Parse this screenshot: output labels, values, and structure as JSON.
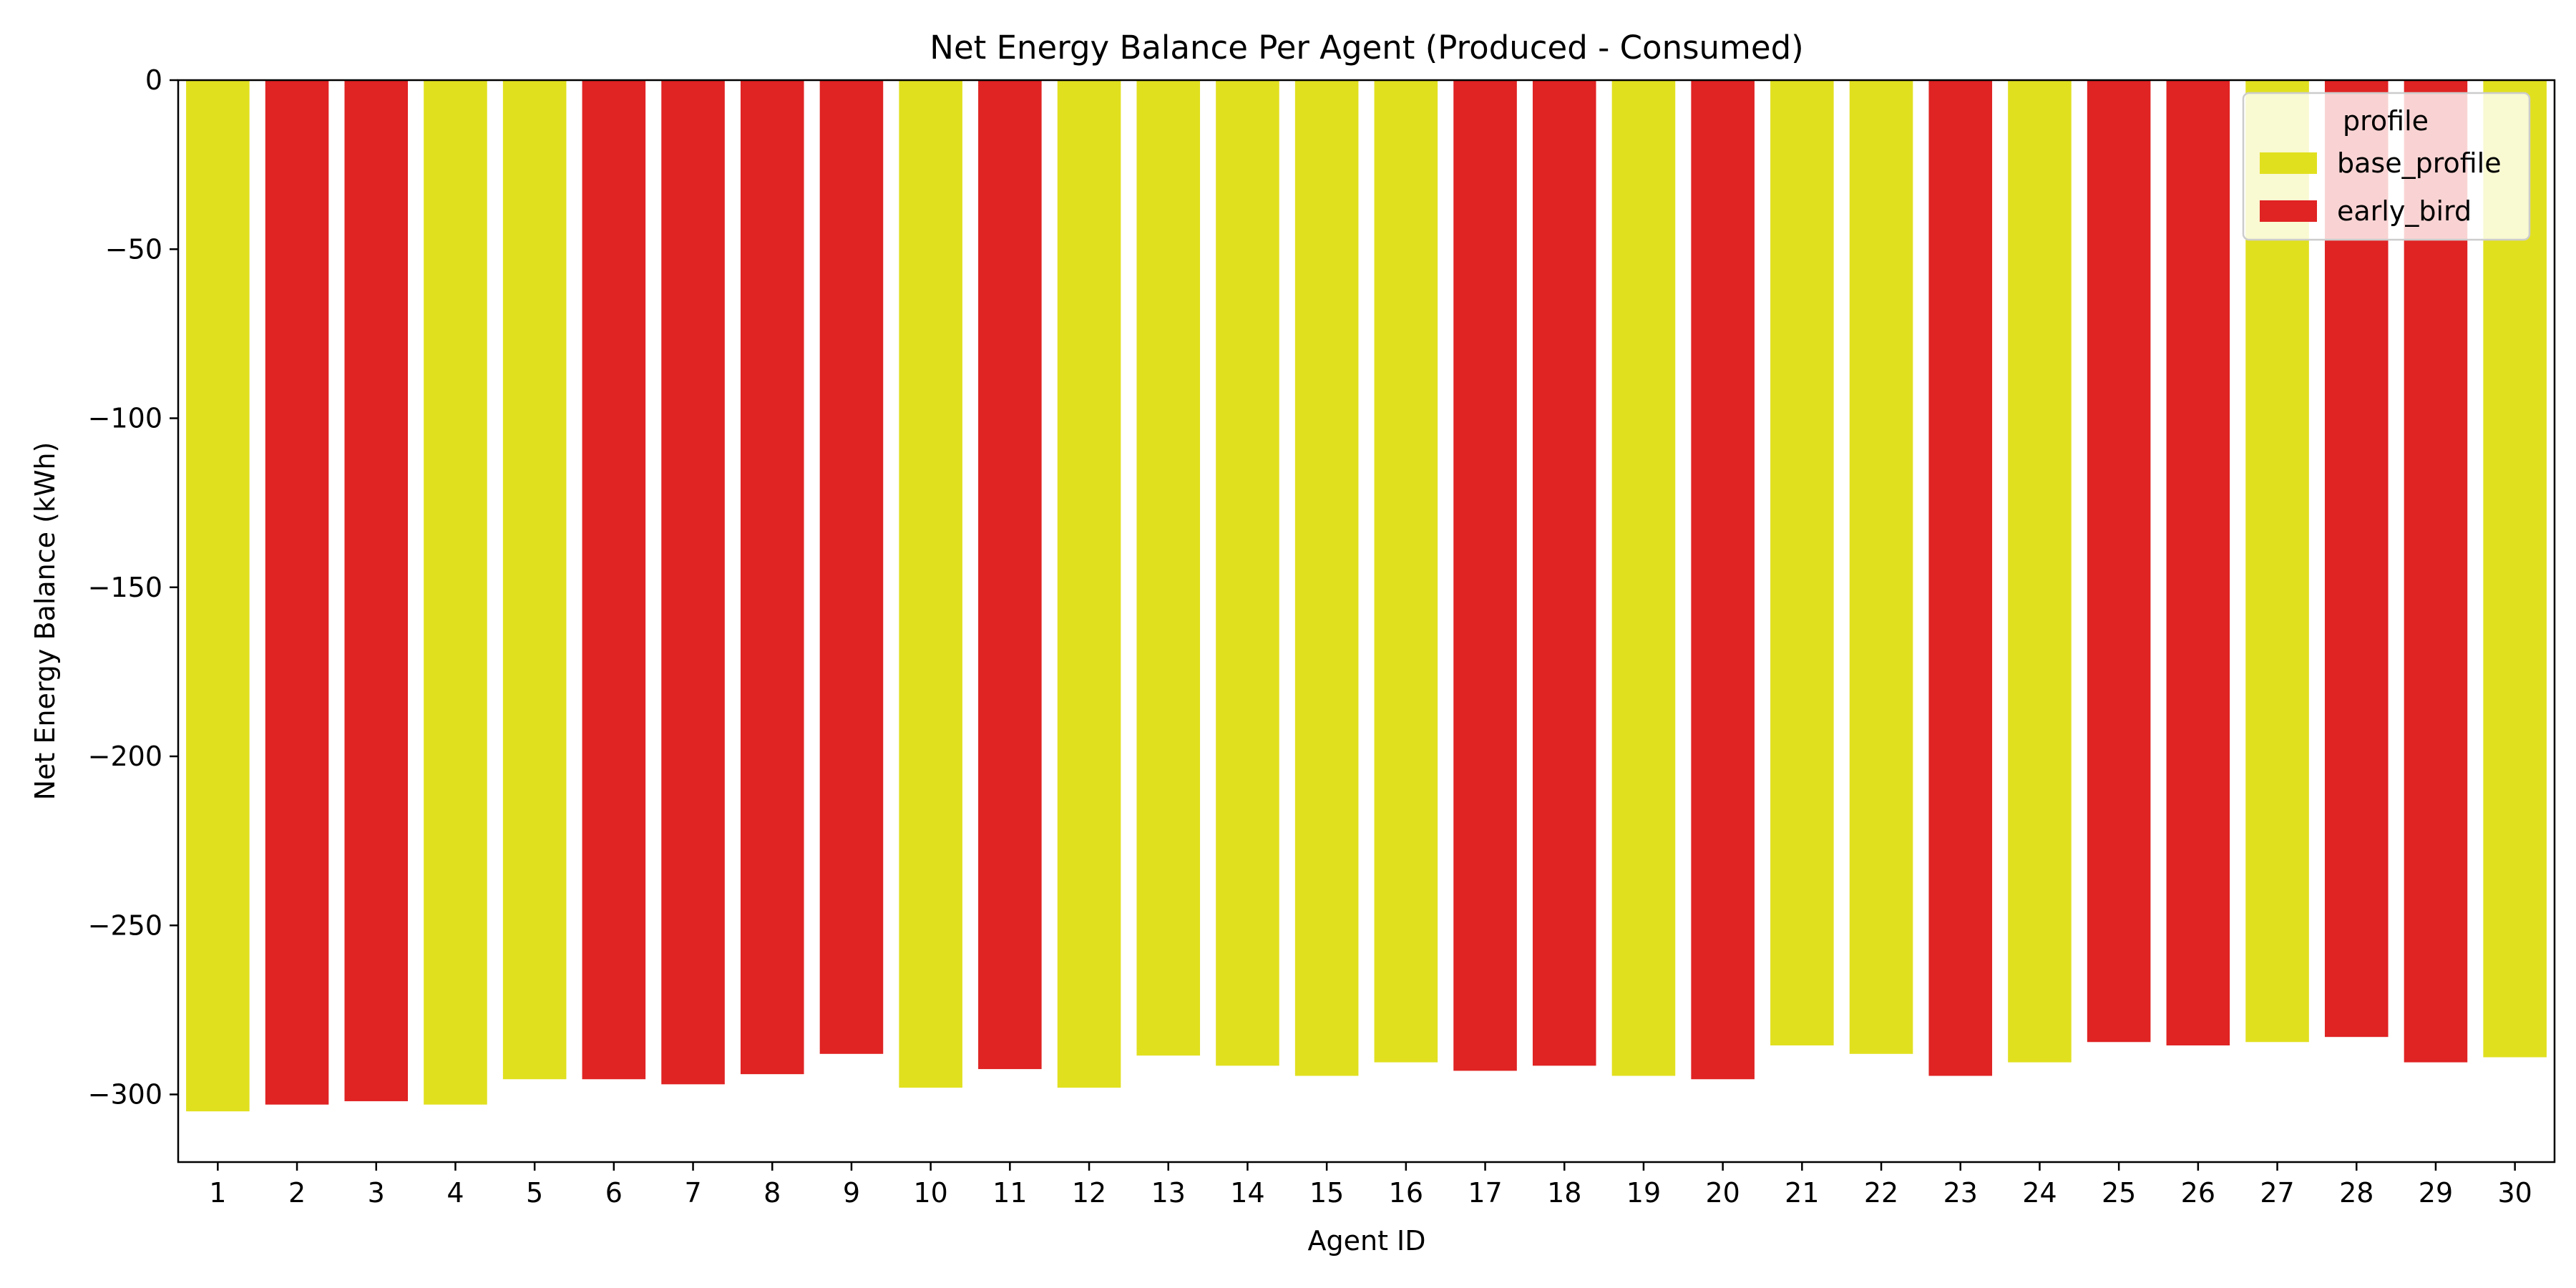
{
  "chart_data": {
    "type": "bar",
    "title": "Net Energy Balance Per Agent (Produced - Consumed)",
    "xlabel": "Agent ID",
    "ylabel": "Net Energy Balance (kWh)",
    "ylim": [
      -320,
      0
    ],
    "yticks": [
      0,
      -50,
      -100,
      -150,
      -200,
      -250,
      -300
    ],
    "ytick_labels": [
      "0",
      "−50",
      "−100",
      "−150",
      "−200",
      "−250",
      "−300"
    ],
    "grid": false,
    "categories": [
      "1",
      "2",
      "3",
      "4",
      "5",
      "6",
      "7",
      "8",
      "9",
      "10",
      "11",
      "12",
      "13",
      "14",
      "15",
      "16",
      "17",
      "18",
      "19",
      "20",
      "21",
      "22",
      "23",
      "24",
      "25",
      "26",
      "27",
      "28",
      "29",
      "30"
    ],
    "values": [
      -305,
      -303,
      -302,
      -303,
      -295.5,
      -295.5,
      -297,
      -294,
      -288,
      -298,
      -292.5,
      -298,
      -288.5,
      -291.5,
      -294.5,
      -290.5,
      -293,
      -291.5,
      -294.5,
      -295.5,
      -285.5,
      -288,
      -294.5,
      -290.5,
      -284.5,
      -285.5,
      -284.5,
      -283,
      -290.5,
      -289
    ],
    "profiles": [
      "base_profile",
      "early_bird",
      "early_bird",
      "base_profile",
      "base_profile",
      "early_bird",
      "early_bird",
      "early_bird",
      "early_bird",
      "base_profile",
      "early_bird",
      "base_profile",
      "base_profile",
      "base_profile",
      "base_profile",
      "base_profile",
      "early_bird",
      "early_bird",
      "base_profile",
      "early_bird",
      "base_profile",
      "base_profile",
      "early_bird",
      "base_profile",
      "early_bird",
      "early_bird",
      "base_profile",
      "early_bird",
      "early_bird",
      "base_profile"
    ],
    "legend": {
      "title": "profile",
      "placement": "top-right",
      "entries": [
        {
          "name": "base_profile",
          "color": "#e1e01f"
        },
        {
          "name": "early_bird",
          "color": "#e02323"
        }
      ]
    }
  }
}
